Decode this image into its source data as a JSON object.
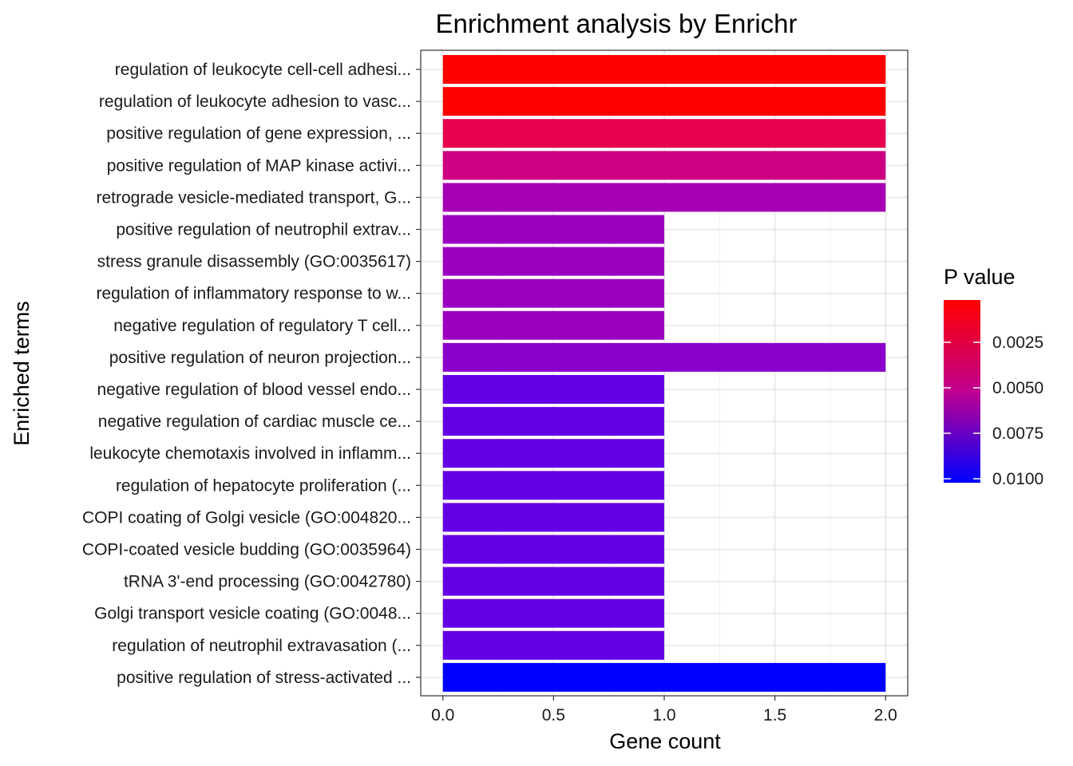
{
  "chart_data": {
    "type": "bar",
    "orientation": "horizontal",
    "title": "Enrichment analysis by Enrichr",
    "xlabel": "Gene count",
    "ylabel": "Enriched terms",
    "xlim": [
      0,
      2
    ],
    "xticks": [
      "0.0",
      "0.5",
      "1.0",
      "1.5",
      "2.0"
    ],
    "grid": true,
    "categories": [
      "regulation of leukocyte cell-cell adhesi...",
      "regulation of leukocyte adhesion to vasc...",
      "positive regulation of gene expression, ...",
      "positive regulation of MAP kinase activi...",
      "retrograde vesicle-mediated transport, G...",
      "positive regulation of neutrophil extrav...",
      "stress granule disassembly (GO:0035617)",
      "regulation of inflammatory response to w...",
      "negative regulation of regulatory T cell...",
      "positive regulation of neuron projection...",
      "negative regulation of blood vessel endo...",
      "negative regulation of cardiac muscle ce...",
      "leukocyte chemotaxis involved in inflamm...",
      "regulation of hepatocyte proliferation (...",
      "COPI coating of Golgi vesicle (GO:004820...",
      "COPI-coated vesicle budding (GO:0035964)",
      "tRNA 3'-end processing (GO:0042780)",
      "Golgi transport vesicle coating (GO:0048...",
      "regulation of neutrophil extravasation (...",
      "positive regulation of stress-activated ..."
    ],
    "values": [
      2,
      2,
      2,
      2,
      2,
      1,
      1,
      1,
      1,
      2,
      1,
      1,
      1,
      1,
      1,
      1,
      1,
      1,
      1,
      2
    ],
    "colors": [
      "#ff0000",
      "#ff0000",
      "#e6004d",
      "#cc0080",
      "#a500b3",
      "#9b00bf",
      "#9b00bf",
      "#9b00bf",
      "#9b00bf",
      "#8a00cc",
      "#6400e5",
      "#6400e5",
      "#6400e5",
      "#6400e5",
      "#6400e5",
      "#6400e5",
      "#6400e5",
      "#6400e5",
      "#6400e5",
      "#0000ff"
    ],
    "legend": {
      "title": "P value",
      "position": "right",
      "labels": [
        "0.0025",
        "0.0050",
        "0.0075",
        "0.0100"
      ],
      "gradient": [
        "#ff0000",
        "#0000ff"
      ]
    }
  }
}
